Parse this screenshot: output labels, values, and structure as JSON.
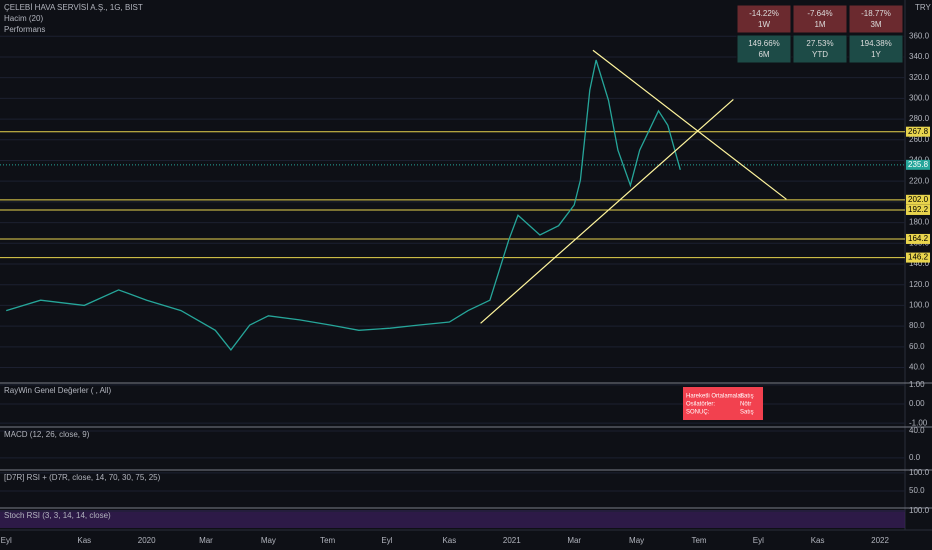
{
  "chart_data": [
    {
      "type": "line",
      "title": "ÇELEBİ HAVA SERVİSİ A.Ş., 1G, BIST",
      "subtitle": "Hacim (20)",
      "annotation": "Performans",
      "currency": "TRY",
      "color": "#26a69a",
      "x": [
        0,
        1.1,
        2.5,
        3.6,
        4.5,
        5.6,
        6.7,
        7.2,
        7.8,
        8.4,
        9.4,
        10.4,
        11.3,
        12.3,
        13.2,
        14.2,
        14.8,
        15.5,
        15.8,
        16.1,
        16.4,
        17.1,
        17.7,
        18.2,
        18.4,
        18.7,
        18.9,
        19.3,
        19.6,
        20.0,
        20.3,
        20.9,
        21.2,
        21.6
      ],
      "values": [
        95,
        105,
        100,
        115,
        105,
        95,
        76,
        57,
        81,
        90,
        86,
        81,
        76,
        78,
        81,
        84,
        95,
        105,
        134,
        163,
        187,
        168,
        177,
        197,
        221,
        308,
        337,
        298,
        250,
        216,
        250,
        288,
        274,
        231
      ],
      "xlim": [
        -0.2,
        28.8
      ],
      "xticks": [
        {
          "value": 0,
          "label": "Eyl"
        },
        {
          "value": 2.5,
          "label": "Kas"
        },
        {
          "value": 4.5,
          "label": "2020"
        },
        {
          "value": 6.4,
          "label": "Mar"
        },
        {
          "value": 8.4,
          "label": "May"
        },
        {
          "value": 10.3,
          "label": "Tem"
        },
        {
          "value": 12.2,
          "label": "Eyl"
        },
        {
          "value": 14.2,
          "label": "Kas"
        },
        {
          "value": 16.2,
          "label": "2021"
        },
        {
          "value": 18.2,
          "label": "Mar"
        },
        {
          "value": 20.2,
          "label": "May"
        },
        {
          "value": 22.2,
          "label": "Tem"
        },
        {
          "value": 24.1,
          "label": "Eyl"
        },
        {
          "value": 26.0,
          "label": "Kas"
        },
        {
          "value": 28.0,
          "label": "2022"
        }
      ],
      "ylim": [
        27,
        395
      ],
      "yticks": [
        {
          "value": 40,
          "label": "40.0"
        },
        {
          "value": 60,
          "label": "60.0"
        },
        {
          "value": 80,
          "label": "80.0"
        },
        {
          "value": 100,
          "label": "100.0"
        },
        {
          "value": 120,
          "label": "120.0"
        },
        {
          "value": 140,
          "label": "140.0"
        },
        {
          "value": 160,
          "label": "160.0"
        },
        {
          "value": 180,
          "label": "180.0"
        },
        {
          "value": 200,
          "label": "200.0"
        },
        {
          "value": 220,
          "label": "220.0"
        },
        {
          "value": 240,
          "label": "240.0"
        },
        {
          "value": 260,
          "label": "260.0"
        },
        {
          "value": 280,
          "label": "280.0"
        },
        {
          "value": 300,
          "label": "300.0"
        },
        {
          "value": 320,
          "label": "320.0"
        },
        {
          "value": 340,
          "label": "340.0"
        },
        {
          "value": 360,
          "label": "360.0"
        }
      ],
      "levels": [
        267.8,
        {
          "value": 202,
          "label": "202.0"
        },
        192.2,
        164.2,
        146.2
      ],
      "current_price": 235.8,
      "trendlines": [
        {
          "x": [
            18.8,
            25.0
          ],
          "values": [
            346.5,
            202.5
          ]
        },
        {
          "x": [
            15.2,
            23.3
          ],
          "values": [
            82.7,
            299
          ]
        }
      ]
    },
    {
      "type": "line",
      "title": "RayWin Genel Değerler ( , All)",
      "ylim": [
        -1.2,
        1.1
      ],
      "yticks": [
        {
          "value": 1,
          "label": "1.00"
        },
        {
          "value": 0,
          "label": "0.00"
        },
        {
          "value": -1,
          "label": "-1.00"
        }
      ]
    },
    {
      "type": "line",
      "title": "MACD (12, 26, close, 9)",
      "ylim": [
        -18,
        46
      ],
      "yticks": [
        {
          "value": 40,
          "label": "40.0"
        },
        {
          "value": 0,
          "label": "0.0"
        }
      ]
    },
    {
      "type": "line",
      "title": "[D7R] RSI + (D7R, close, 14, 70, 30, 75, 25)",
      "ylim": [
        3,
        108
      ],
      "yticks": [
        {
          "value": 100,
          "label": "100.0"
        },
        {
          "value": 50,
          "label": "50.0"
        }
      ]
    },
    {
      "type": "line",
      "title": "Stoch RSI (3, 3, 14, 14, close)",
      "ylim": [
        0,
        116
      ],
      "yticks": [
        {
          "value": 100,
          "label": "100.0"
        }
      ]
    }
  ],
  "performance": [
    {
      "value": "-14.22%",
      "period": "1W"
    },
    {
      "value": "-7.64%",
      "period": "1M"
    },
    {
      "value": "-18.77%",
      "period": "3M"
    },
    {
      "value": "149.66%",
      "period": "6M"
    },
    {
      "value": "27.53%",
      "period": "YTD"
    },
    {
      "value": "194.38%",
      "period": "1Y"
    }
  ],
  "signal_box": [
    {
      "label": "Hareketli Ortalamalar:",
      "value": "Satış"
    },
    {
      "label": "Osilatörler:",
      "value": "Nötr"
    },
    {
      "label": "SONUÇ:",
      "value": "Satış"
    }
  ]
}
